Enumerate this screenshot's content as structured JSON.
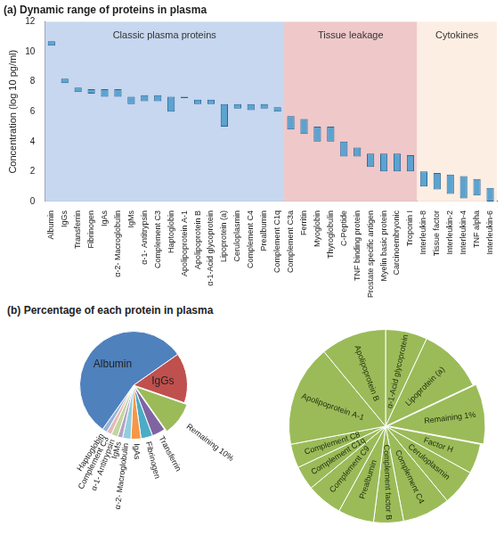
{
  "chart_data": [
    {
      "type": "bar",
      "title": "(a) Dynamic range of proteins in plasma",
      "ylabel": "Concentration (log 10 pg/ml)",
      "categories": [
        "Albumin",
        "IgGs",
        "Transferrin",
        "Fibrinogen",
        "IgAs",
        "α-2- Macroglobulin",
        "IgMs",
        "α-1- Antitrypsin",
        "Complement C3",
        "Haptoglobin",
        "Apolipoprotein A-1",
        "Apolipoprotein B",
        "α-1-Acid glycoprotein",
        "Lipoprotein (a)",
        "Ceruloplasmin",
        "Complement C4",
        "Prealbumin",
        "Complement C1q",
        "Complement C3a",
        "Ferritin",
        "Myoglobin",
        "Thyroglobulin",
        "C-Peptide",
        "TNF binding protein",
        "Prostate specific antigen",
        "Myelin basic protein",
        "Carcinoembryonic",
        "Troponin I",
        "Interleukin-8",
        "Tissue factor",
        "Interleukin-2",
        "Interleukin-4",
        "TNF alpha",
        "Interleukin-6"
      ],
      "values": [
        [
          10.4,
          10.7
        ],
        [
          7.9,
          8.2
        ],
        [
          7.3,
          7.6
        ],
        [
          7.2,
          7.5
        ],
        [
          7.0,
          7.5
        ],
        [
          7.0,
          7.5
        ],
        [
          6.5,
          7.0
        ],
        [
          6.7,
          7.1
        ],
        [
          6.7,
          7.1
        ],
        [
          6.0,
          7.0
        ],
        [
          6.9,
          7.0
        ],
        [
          6.5,
          6.8
        ],
        [
          6.5,
          6.8
        ],
        [
          5.0,
          6.5
        ],
        [
          6.2,
          6.5
        ],
        [
          6.1,
          6.5
        ],
        [
          6.2,
          6.5
        ],
        [
          6.0,
          6.3
        ],
        [
          4.8,
          5.7
        ],
        [
          4.5,
          5.5
        ],
        [
          4.0,
          5.0
        ],
        [
          4.0,
          5.0
        ],
        [
          3.0,
          4.0
        ],
        [
          3.0,
          3.6
        ],
        [
          2.3,
          3.2
        ],
        [
          2.0,
          3.2
        ],
        [
          2.0,
          3.2
        ],
        [
          2.0,
          3.1
        ],
        [
          1.0,
          2.0
        ],
        [
          0.8,
          1.9
        ],
        [
          0.5,
          1.8
        ],
        [
          0.2,
          1.7
        ],
        [
          0.4,
          1.5
        ],
        [
          0.0,
          0.9
        ]
      ],
      "color": "#5ba3d0",
      "ylim": [
        0,
        12
      ],
      "yticks": [
        0,
        2,
        4,
        6,
        8,
        10,
        12
      ],
      "grid": false,
      "regions": [
        {
          "label": "Classic plasma proteins",
          "from": "Albumin",
          "to": "Complement C1q",
          "color": "#c6d7ef"
        },
        {
          "label": "Tissue leakage",
          "from": "Complement C3a",
          "to": "Troponin I",
          "color": "#efc8c9"
        },
        {
          "label": "Cytokines",
          "from": "Interleukin-8",
          "to": "Interleukin-6",
          "color": "#fdeee3"
        }
      ]
    },
    {
      "type": "pie",
      "title": "(b) Percentage of each protein in plasma",
      "categories": [
        "IgGs",
        "Remaining 10%",
        "Transferrin",
        "Fibrinogen",
        "IgAs",
        "α-2- Macroglobulin",
        "IgMs",
        "α-1- Antitrypsin",
        "Complement C3",
        "Haptoglobin",
        "Albumin"
      ],
      "values": [
        15,
        10,
        4,
        3.5,
        3,
        2.5,
        1.5,
        2,
        1.5,
        1.5,
        55.5
      ],
      "colors": [
        "#c0504d",
        "#9bbb59",
        "#8064a2",
        "#4bacc6",
        "#f79646",
        "#93cddd",
        "#b3a2c7",
        "#c3d69b",
        "#e6b9b8",
        "#95b3d7",
        "#4f81bd"
      ]
    },
    {
      "type": "pie",
      "categories": [
        "α-1-Acid glycoprotein",
        "Lipoprotein (a)",
        "Remaining 1%",
        "Factor H",
        "Ceruloplasmin",
        "Complement C4",
        "Complement factor B",
        "Prealbumin",
        "Complement C9",
        "Complement C1q",
        "Complement C8",
        "Apolipoprotein A-1",
        "Apolipoprotein B"
      ],
      "values": [
        0.7,
        1.1,
        1.0,
        0.5,
        0.6,
        0.8,
        0.5,
        0.6,
        0.6,
        0.4,
        0.4,
        1.7,
        1.1
      ],
      "color": "#9bbb59"
    }
  ]
}
